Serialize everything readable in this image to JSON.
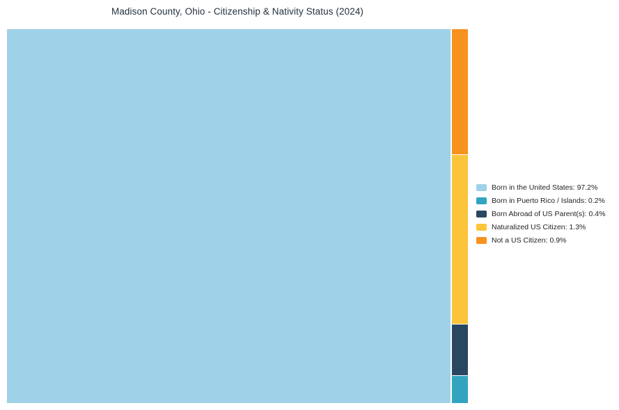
{
  "title": "Madison County, Ohio - Citizenship & Nativity Status (2024)",
  "chart_data": {
    "type": "pie",
    "variant": "treemap",
    "title": "Madison County, Ohio - Citizenship & Nativity Status (2024)",
    "unit": "%",
    "legend_position": "right",
    "slices": [
      {
        "label": "Born in the United States",
        "value": 97.2,
        "color": "#9FD1E8",
        "legend_label": "Born in the United States: 97.2%"
      },
      {
        "label": "Born in Puerto Rico / Islands",
        "value": 0.2,
        "color": "#33A4C0",
        "legend_label": "Born in Puerto Rico / Islands: 0.2%"
      },
      {
        "label": "Born Abroad of US Parent(s)",
        "value": 0.4,
        "color": "#2A4761",
        "legend_label": "Born Abroad of US Parent(s): 0.4%"
      },
      {
        "label": "Naturalized US Citizen",
        "value": 1.3,
        "color": "#FBC43B",
        "legend_label": "Naturalized US Citizen: 1.3%"
      },
      {
        "label": "Not a US Citizen",
        "value": 0.9,
        "color": "#F6921E",
        "legend_label": "Not a US Citizen: 0.9%"
      }
    ]
  }
}
